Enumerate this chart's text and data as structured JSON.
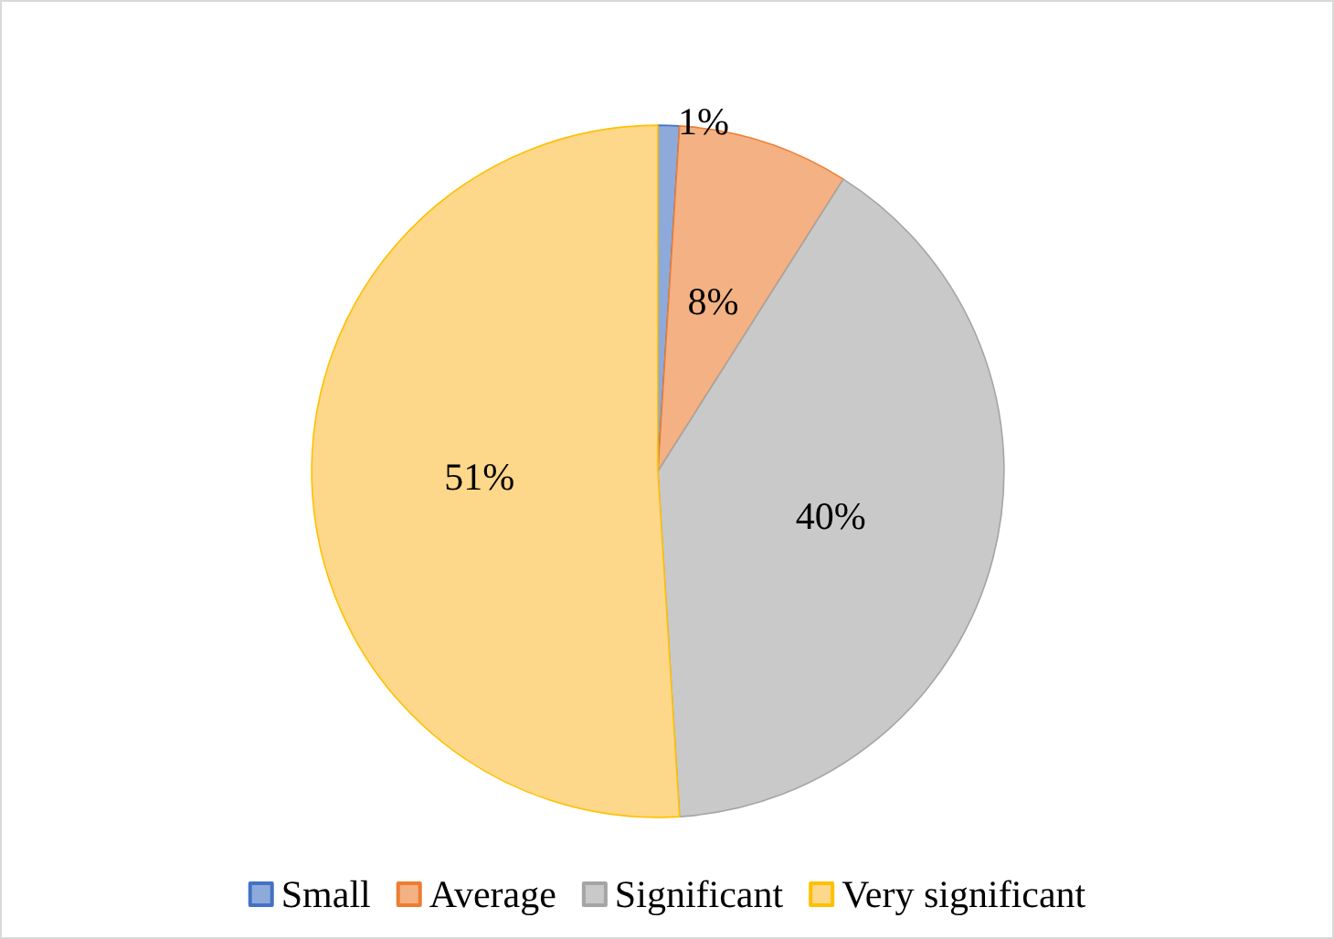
{
  "chart_data": {
    "type": "pie",
    "categories": [
      "Small",
      "Average",
      "Significant",
      "Very significant"
    ],
    "values": [
      1,
      8,
      40,
      51
    ],
    "colors": [
      "#8eaadb",
      "#f4b183",
      "#c9c9c9",
      "#fdd78a"
    ],
    "value_labels": [
      "1%",
      "8%",
      "40%",
      "51%"
    ],
    "legend": "bottom"
  }
}
